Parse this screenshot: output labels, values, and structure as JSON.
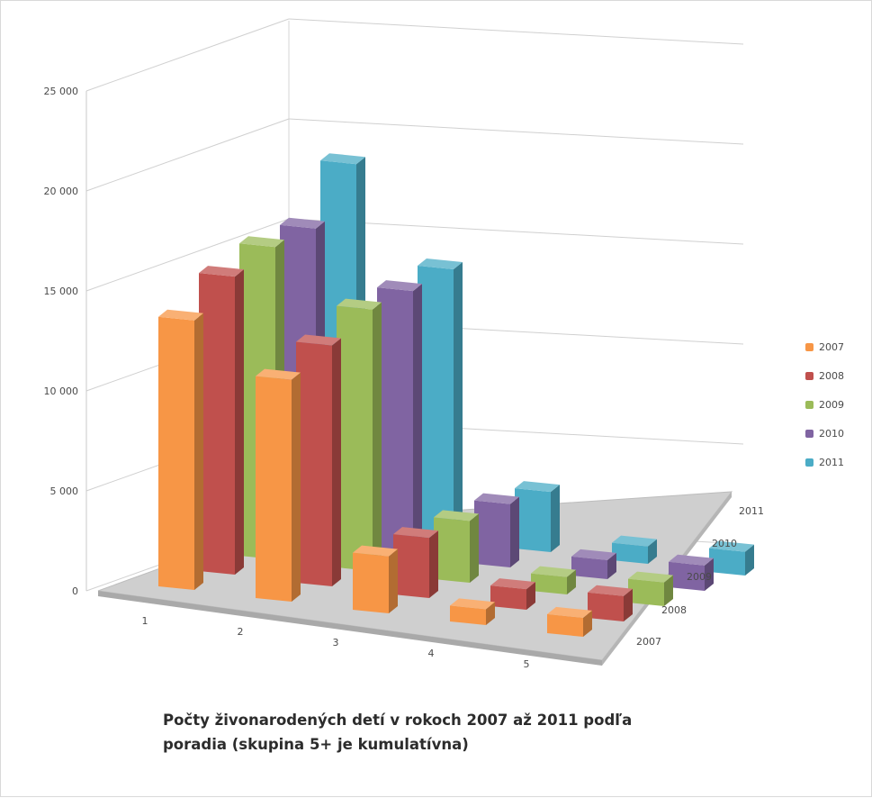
{
  "chart_data": {
    "type": "bar",
    "variant": "3d-column",
    "title_lines": [
      "Počty živonarodených detí v rokoch 2007 až 2011 podľa",
      "poradia (skupina 5+ je kumulatívna)"
    ],
    "categories": [
      "1",
      "2",
      "3",
      "4",
      "5"
    ],
    "series": [
      {
        "name": "2007",
        "color": "#f79646",
        "values": [
          17000,
          14000,
          3600,
          1000,
          1200
        ]
      },
      {
        "name": "2008",
        "color": "#c0504d",
        "values": [
          18800,
          15200,
          3800,
          1300,
          1600
        ]
      },
      {
        "name": "2009",
        "color": "#9bbb59",
        "values": [
          19700,
          16500,
          3900,
          1100,
          1500
        ]
      },
      {
        "name": "2010",
        "color": "#8064a2",
        "values": [
          19900,
          16700,
          4000,
          1200,
          1600
        ]
      },
      {
        "name": "2011",
        "color": "#4bacc6",
        "values": [
          23000,
          17100,
          3800,
          1100,
          1500
        ]
      }
    ],
    "depth_labels": [
      "2007",
      "2008",
      "2009",
      "2010",
      "2011"
    ],
    "y_ticks": [
      "0",
      "5 000",
      "10 000",
      "15 000",
      "20 000",
      "25 000"
    ],
    "ylim": [
      0,
      25000
    ],
    "grid": true,
    "legend_position": "right"
  }
}
